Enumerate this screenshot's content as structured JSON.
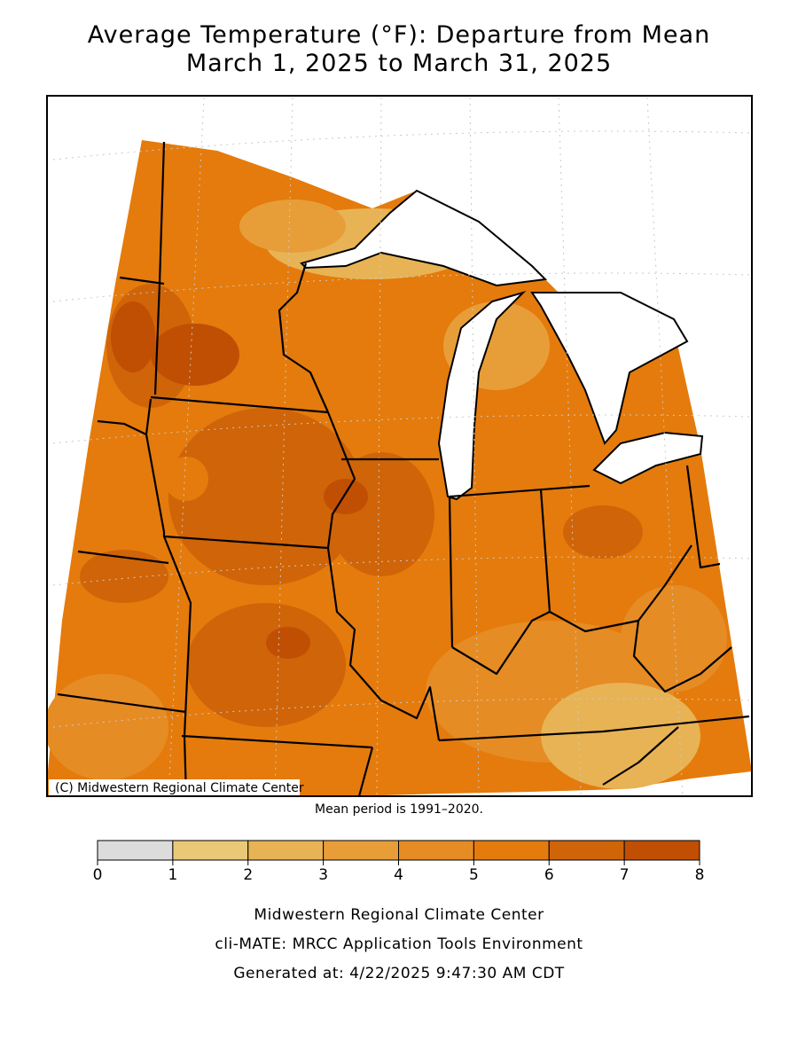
{
  "header": {
    "title": "Average Temperature (°F): Departure from Mean",
    "subtitle": "March 1, 2025 to March 31, 2025"
  },
  "map": {
    "credit": "(C) Midwestern Regional Climate Center",
    "note": "Mean period is 1991–2020."
  },
  "legend": {
    "ticks": [
      0,
      1,
      2,
      3,
      4,
      5,
      6,
      7,
      8
    ],
    "colors": [
      "#dcdcdc",
      "#e9c878",
      "#e8b354",
      "#e89e38",
      "#e68c24",
      "#e47b0c",
      "#d06408",
      "#c04f04"
    ]
  },
  "footer": {
    "lines": [
      "Midwestern Regional Climate Center",
      "cli-MATE: MRCC Application Tools Environment",
      "Generated at: 4/22/2025 9:47:30 AM CDT"
    ]
  }
}
